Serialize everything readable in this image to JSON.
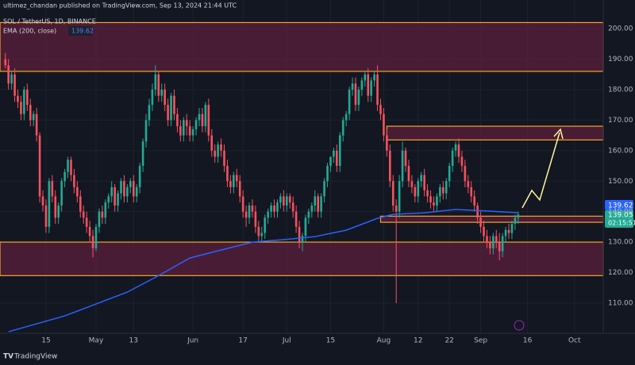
{
  "header": {
    "publisher": "ultimez_chandan published on TradingView.com, Sep 13, 2024 21:44 UTC",
    "symbol": "SOL / TetherUS, 1D, BINANCE",
    "indicator": "EMA (200, close)",
    "indicator_value": "139.62",
    "last_price": "139.05",
    "countdown": "02:15:51",
    "brand": "TradingView"
  },
  "chart_data": {
    "type": "candlestick",
    "x": [
      1,
      2,
      3,
      4,
      5,
      6,
      7,
      8,
      9,
      10,
      11,
      12,
      13,
      14,
      15,
      16,
      17,
      18,
      19,
      20,
      21,
      22,
      23,
      24,
      25,
      26,
      27,
      28,
      29,
      30,
      31,
      32,
      33,
      34,
      35,
      36,
      37,
      38,
      39,
      40,
      41,
      42,
      43,
      44,
      45,
      46,
      47,
      48,
      49,
      50,
      51,
      52,
      53,
      54,
      55,
      56,
      57,
      58,
      59,
      60,
      61,
      62,
      63,
      64,
      65,
      66,
      67,
      68,
      69,
      70,
      71,
      72,
      73,
      74,
      75,
      76,
      77,
      78,
      79,
      80,
      81,
      82,
      83,
      84,
      85,
      86,
      87,
      88,
      89,
      90,
      91,
      92,
      93,
      94,
      95,
      96,
      97,
      98,
      99,
      100,
      101,
      102,
      103,
      104,
      105,
      106,
      107,
      108,
      109,
      110,
      111,
      112,
      113,
      114,
      115,
      116,
      117,
      118,
      119,
      120,
      121,
      122,
      123,
      124,
      125,
      126,
      127,
      128,
      129,
      130,
      131,
      132,
      133,
      134,
      135,
      136,
      137,
      138,
      139,
      140,
      141,
      142,
      143,
      144,
      145,
      146,
      147,
      148,
      149,
      150,
      151,
      152,
      153,
      154,
      155,
      156,
      157,
      158,
      159,
      160,
      161,
      162,
      163,
      164,
      165
    ],
    "open": [
      190,
      188,
      182,
      185,
      178,
      176,
      172,
      180,
      175,
      170,
      172,
      165,
      145,
      142,
      135,
      150,
      145,
      138,
      142,
      150,
      153,
      157,
      152,
      148,
      145,
      140,
      138,
      135,
      132,
      128,
      135,
      140,
      138,
      143,
      145,
      148,
      142,
      146,
      150,
      145,
      148,
      150,
      145,
      148,
      155,
      163,
      170,
      175,
      180,
      185,
      178,
      180,
      175,
      170,
      178,
      172,
      168,
      165,
      170,
      168,
      165,
      167,
      170,
      172,
      168,
      175,
      165,
      160,
      158,
      162,
      160,
      155,
      150,
      148,
      152,
      150,
      145,
      140,
      138,
      142,
      140,
      135,
      132,
      133,
      138,
      140,
      142,
      140,
      143,
      145,
      142,
      145,
      143,
      140,
      135,
      130,
      132,
      138,
      140,
      142,
      145,
      140,
      145,
      150,
      155,
      158,
      160,
      155,
      165,
      170,
      172,
      180,
      182,
      175,
      180,
      183,
      185,
      178,
      183,
      185,
      175,
      172,
      165,
      160,
      150,
      142,
      140,
      150,
      160,
      155,
      150,
      148,
      145,
      150,
      152,
      147,
      145,
      143,
      142,
      145,
      148,
      146,
      150,
      155,
      160,
      162,
      158,
      155,
      150,
      148,
      145,
      142,
      138,
      135,
      132,
      130,
      128,
      132,
      130,
      127,
      132,
      134,
      133,
      136,
      138
    ],
    "high": [
      192,
      190,
      186,
      187,
      180,
      178,
      181,
      182,
      177,
      173,
      174,
      166,
      147,
      144,
      151,
      152,
      147,
      143,
      151,
      154,
      158,
      158,
      154,
      150,
      147,
      142,
      140,
      137,
      134,
      136,
      141,
      142,
      144,
      146,
      150,
      149,
      147,
      151,
      152,
      149,
      151,
      152,
      149,
      156,
      164,
      172,
      177,
      182,
      188,
      186,
      182,
      182,
      177,
      179,
      180,
      174,
      170,
      171,
      172,
      170,
      168,
      171,
      174,
      174,
      176,
      177,
      167,
      162,
      163,
      164,
      162,
      157,
      152,
      153,
      154,
      152,
      147,
      142,
      143,
      144,
      142,
      137,
      135,
      139,
      141,
      143,
      144,
      144,
      146,
      147,
      146,
      146,
      145,
      142,
      137,
      133,
      139,
      141,
      143,
      147,
      146,
      146,
      151,
      156,
      157,
      161,
      162,
      166,
      171,
      173,
      181,
      184,
      184,
      181,
      184,
      186,
      187,
      184,
      186,
      188,
      177,
      174,
      167,
      162,
      152,
      144,
      152,
      163,
      161,
      157,
      152,
      149,
      151,
      153,
      154,
      149,
      147,
      145,
      146,
      149,
      150,
      151,
      156,
      161,
      163,
      164,
      160,
      157,
      152,
      150,
      147,
      143,
      140,
      137,
      134,
      132,
      133,
      134,
      133,
      133,
      135,
      136,
      137,
      139,
      140
    ],
    "low": [
      187,
      180,
      180,
      176,
      174,
      170,
      170,
      173,
      168,
      168,
      163,
      143,
      140,
      133,
      133,
      143,
      136,
      136,
      140,
      148,
      151,
      150,
      146,
      143,
      138,
      136,
      133,
      130,
      125,
      127,
      133,
      136,
      136,
      141,
      143,
      140,
      140,
      144,
      143,
      143,
      146,
      143,
      143,
      146,
      153,
      161,
      168,
      173,
      178,
      176,
      176,
      173,
      168,
      168,
      170,
      166,
      163,
      163,
      165,
      163,
      163,
      165,
      168,
      166,
      166,
      163,
      158,
      156,
      156,
      158,
      153,
      148,
      146,
      146,
      148,
      143,
      138,
      135,
      136,
      138,
      133,
      130,
      130,
      131,
      136,
      138,
      138,
      138,
      141,
      140,
      140,
      141,
      138,
      133,
      128,
      127,
      130,
      136,
      138,
      140,
      138,
      138,
      143,
      148,
      153,
      156,
      153,
      153,
      163,
      168,
      170,
      178,
      173,
      173,
      178,
      181,
      176,
      176,
      181,
      173,
      170,
      163,
      158,
      148,
      140,
      110,
      138,
      148,
      153,
      148,
      146,
      143,
      143,
      148,
      145,
      143,
      141,
      140,
      140,
      143,
      144,
      144,
      148,
      153,
      158,
      156,
      153,
      148,
      146,
      143,
      140,
      136,
      133,
      130,
      128,
      126,
      126,
      128,
      124,
      125,
      130,
      131,
      131,
      134,
      136
    ],
    "close": [
      188,
      182,
      185,
      178,
      176,
      172,
      180,
      175,
      170,
      172,
      165,
      145,
      142,
      135,
      150,
      145,
      138,
      142,
      150,
      153,
      157,
      152,
      148,
      145,
      140,
      138,
      135,
      132,
      128,
      135,
      140,
      138,
      143,
      145,
      148,
      142,
      146,
      150,
      145,
      148,
      150,
      145,
      148,
      155,
      163,
      170,
      175,
      180,
      185,
      178,
      180,
      175,
      170,
      178,
      172,
      168,
      165,
      170,
      168,
      165,
      167,
      170,
      172,
      168,
      175,
      165,
      160,
      158,
      162,
      160,
      155,
      150,
      148,
      152,
      150,
      145,
      140,
      138,
      142,
      140,
      135,
      132,
      133,
      138,
      140,
      142,
      140,
      143,
      145,
      142,
      145,
      143,
      140,
      135,
      130,
      132,
      138,
      140,
      142,
      145,
      140,
      145,
      150,
      155,
      158,
      160,
      155,
      165,
      170,
      172,
      180,
      182,
      175,
      180,
      183,
      185,
      178,
      183,
      185,
      175,
      172,
      165,
      160,
      150,
      142,
      140,
      150,
      160,
      155,
      150,
      148,
      145,
      150,
      152,
      147,
      145,
      143,
      142,
      145,
      148,
      146,
      150,
      155,
      160,
      162,
      158,
      155,
      150,
      148,
      145,
      142,
      138,
      135,
      132,
      130,
      128,
      132,
      130,
      127,
      132,
      134,
      133,
      136,
      138,
      139.05
    ],
    "up_color": "#22ab94",
    "down_color": "#f7525f",
    "ema": {
      "color": "#2962ff",
      "x": [
        2,
        20,
        40,
        50,
        60,
        70,
        80,
        90,
        100,
        110,
        120,
        125,
        135,
        145,
        155,
        165
      ],
      "values": [
        100.6,
        105.8,
        113.6,
        119,
        124.8,
        127.4,
        130,
        130.8,
        131.8,
        133.9,
        137.8,
        139.1,
        139.6,
        140.7,
        140.2,
        139.62
      ]
    },
    "zones": [
      {
        "low": 186,
        "high": 202
      },
      {
        "low": 119,
        "high": 130
      },
      {
        "low": 163.5,
        "high": 168,
        "start": 123
      },
      {
        "low": 136.5,
        "high": 138.5,
        "start": 121
      }
    ],
    "zone_fill": "#5c1f3e",
    "zone_border": "#f5a623",
    "xlim": [
      -0.71,
      192.2
    ],
    "ylim": [
      100.1,
      209.4
    ],
    "yticks": [
      {
        "value": 110,
        "label": "110.00"
      },
      {
        "value": 120,
        "label": "120.00"
      },
      {
        "value": 130,
        "label": "130.00"
      },
      {
        "value": 140,
        "label": "140.00"
      },
      {
        "value": 150,
        "label": "150.00"
      },
      {
        "value": 160,
        "label": "160.00"
      },
      {
        "value": 170,
        "label": "170.00"
      },
      {
        "value": 180,
        "label": "180.00"
      },
      {
        "value": 190,
        "label": "190.00"
      },
      {
        "value": 200,
        "label": "200.00"
      }
    ],
    "xticks": [
      {
        "value": 14,
        "label": "15"
      },
      {
        "value": 30,
        "label": "May"
      },
      {
        "value": 42,
        "label": "13"
      },
      {
        "value": 61,
        "label": "Jun"
      },
      {
        "value": 77,
        "label": "17"
      },
      {
        "value": 91,
        "label": "Jul"
      },
      {
        "value": 105,
        "label": "15"
      },
      {
        "value": 122,
        "label": "Aug"
      },
      {
        "value": 133,
        "label": "12"
      },
      {
        "value": 143,
        "label": "22"
      },
      {
        "value": 153,
        "label": "Sep"
      },
      {
        "value": 168,
        "label": "16"
      },
      {
        "value": 183,
        "label": "Oct"
      }
    ],
    "grid": true
  }
}
